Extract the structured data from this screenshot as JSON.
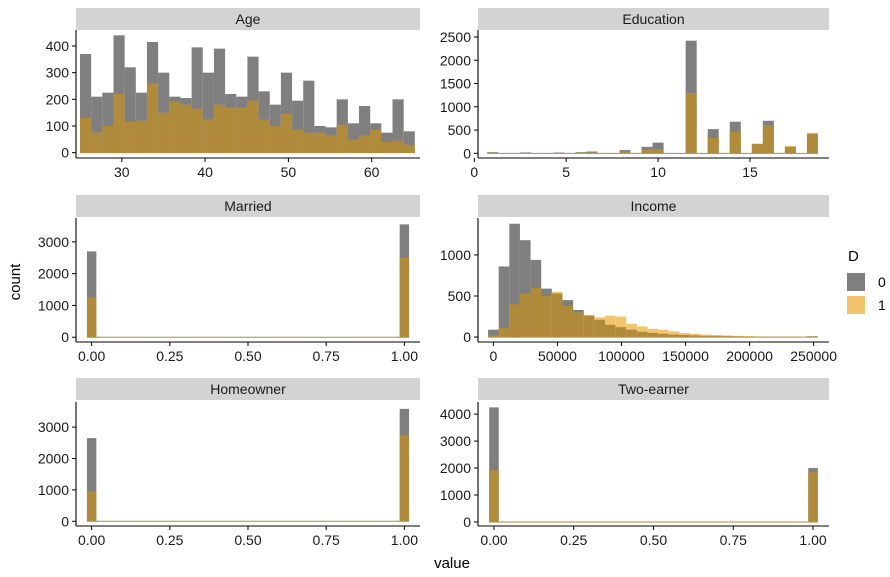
{
  "figure": {
    "xlabel": "value",
    "ylabel": "count",
    "legend": {
      "title": "D",
      "placement": "right",
      "entries": [
        "0",
        "1"
      ]
    },
    "colors": {
      "0": "#7f7f7f",
      "1": "#f2c46d",
      "overlap": "#b08b3c",
      "strip": "#d3d3d3",
      "axis": "#000000"
    }
  },
  "chart_data": [
    {
      "type": "bar",
      "title": "Age",
      "xlim": [
        24.5,
        65.8
      ],
      "ylim": [
        -20,
        460
      ],
      "x_ticks": [
        30,
        40,
        50,
        60
      ],
      "x_tick_labels": [
        "30",
        "40",
        "50",
        "60"
      ],
      "y_ticks": [
        0,
        100,
        200,
        300,
        400
      ],
      "y_tick_labels": [
        "0",
        "100",
        "200",
        "300",
        "400"
      ],
      "x": [
        25.65,
        26.99,
        28.33,
        29.67,
        31.01,
        32.35,
        33.69,
        35.03,
        36.37,
        37.71,
        39.05,
        40.39,
        41.73,
        43.07,
        44.41,
        45.75,
        47.09,
        48.43,
        49.77,
        51.11,
        52.45,
        53.79,
        55.13,
        56.47,
        57.81,
        59.15,
        60.49,
        61.83,
        63.17,
        64.51
      ],
      "bin_width": 1.34,
      "series": [
        {
          "name": "0",
          "values": [
            370,
            210,
            225,
            440,
            320,
            225,
            415,
            300,
            210,
            205,
            395,
            300,
            390,
            220,
            210,
            360,
            230,
            180,
            300,
            195,
            270,
            100,
            95,
            200,
            110,
            175,
            110,
            75,
            200,
            80
          ]
        },
        {
          "name": "1",
          "values": [
            130,
            75,
            100,
            220,
            115,
            120,
            260,
            150,
            190,
            180,
            165,
            125,
            180,
            170,
            170,
            195,
            125,
            100,
            145,
            85,
            75,
            75,
            65,
            105,
            50,
            65,
            85,
            40,
            45,
            30
          ]
        }
      ]
    },
    {
      "type": "bar",
      "title": "Education",
      "xlim": [
        0.2,
        19.3
      ],
      "ylim": [
        -100,
        2650
      ],
      "x_ticks": [
        0,
        5,
        10,
        15
      ],
      "x_tick_labels": [
        "0",
        "5",
        "10",
        "15"
      ],
      "y_ticks": [
        0,
        500,
        1000,
        1500,
        2000,
        2500
      ],
      "y_tick_labels": [
        "0",
        "500",
        "1000",
        "1500",
        "2000",
        "2500"
      ],
      "x": [
        1.0,
        1.6,
        2.2,
        2.8,
        3.4,
        4.0,
        4.6,
        5.2,
        5.8,
        6.4,
        7.0,
        7.6,
        8.2,
        8.8,
        9.4,
        10.0,
        10.6,
        11.2,
        11.8,
        12.4,
        13.0,
        13.6,
        14.2,
        14.8,
        15.4,
        16.0,
        16.6,
        17.2,
        17.8,
        18.4
      ],
      "bin_width": 0.6,
      "series": [
        {
          "name": "0",
          "values": [
            25,
            0,
            0,
            20,
            0,
            0,
            18,
            0,
            25,
            40,
            0,
            0,
            70,
            0,
            140,
            230,
            0,
            0,
            2420,
            0,
            520,
            0,
            680,
            0,
            200,
            700,
            0,
            140,
            0,
            420
          ]
        },
        {
          "name": "1",
          "values": [
            12,
            0,
            0,
            10,
            0,
            0,
            8,
            0,
            15,
            20,
            0,
            0,
            40,
            0,
            75,
            95,
            0,
            0,
            1300,
            0,
            330,
            0,
            460,
            0,
            210,
            600,
            0,
            160,
            0,
            440
          ]
        }
      ]
    },
    {
      "type": "bar",
      "title": "Married",
      "xlim": [
        -0.05,
        1.05
      ],
      "ylim": [
        -150,
        3750
      ],
      "x_ticks": [
        0,
        0.25,
        0.5,
        0.75,
        1.0
      ],
      "x_tick_labels": [
        "0.00",
        "0.25",
        "0.50",
        "0.75",
        "1.00"
      ],
      "y_ticks": [
        0,
        1000,
        2000,
        3000
      ],
      "y_tick_labels": [
        "0",
        "1000",
        "2000",
        "3000"
      ],
      "x": [
        0.0,
        1.0
      ],
      "bin_width": 0.03,
      "series": [
        {
          "name": "0",
          "values": [
            2700,
            3550
          ]
        },
        {
          "name": "1",
          "values": [
            1250,
            2500
          ]
        }
      ]
    },
    {
      "type": "bar",
      "title": "Income",
      "xlim": [
        -12000,
        262000
      ],
      "ylim": [
        -60,
        1450
      ],
      "x_ticks": [
        0,
        50000,
        100000,
        150000,
        200000,
        250000
      ],
      "x_tick_labels": [
        "0",
        "50000",
        "100000",
        "150000",
        "200000",
        "250000"
      ],
      "y_ticks": [
        0,
        500,
        1000
      ],
      "y_tick_labels": [
        "0",
        "500",
        "1000"
      ],
      "x": [
        0,
        8300,
        16600,
        24900,
        33200,
        41500,
        49800,
        58100,
        66400,
        74700,
        83000,
        91300,
        99600,
        107900,
        116200,
        124500,
        132800,
        141100,
        149400,
        157700,
        166000,
        174300,
        182600,
        190900,
        199200,
        207500,
        215800,
        224100,
        232400,
        240700,
        249000
      ],
      "bin_width": 8300,
      "series": [
        {
          "name": "0",
          "values": [
            90,
            860,
            1380,
            1180,
            940,
            590,
            530,
            450,
            330,
            260,
            210,
            150,
            120,
            90,
            65,
            50,
            40,
            30,
            25,
            20,
            15,
            12,
            10,
            8,
            6,
            5,
            4,
            3,
            3,
            2,
            10
          ]
        },
        {
          "name": "1",
          "values": [
            20,
            110,
            400,
            530,
            600,
            500,
            550,
            380,
            300,
            270,
            240,
            260,
            250,
            160,
            130,
            100,
            90,
            70,
            50,
            40,
            30,
            25,
            20,
            15,
            12,
            8,
            6,
            5,
            4,
            3,
            8
          ]
        }
      ]
    },
    {
      "type": "bar",
      "title": "Homeowner",
      "xlim": [
        -0.05,
        1.05
      ],
      "ylim": [
        -150,
        3800
      ],
      "x_ticks": [
        0,
        0.25,
        0.5,
        0.75,
        1.0
      ],
      "x_tick_labels": [
        "0.00",
        "0.25",
        "0.50",
        "0.75",
        "1.00"
      ],
      "y_ticks": [
        0,
        1000,
        2000,
        3000
      ],
      "y_tick_labels": [
        "0",
        "1000",
        "2000",
        "3000"
      ],
      "x": [
        0.0,
        1.0
      ],
      "bin_width": 0.03,
      "series": [
        {
          "name": "0",
          "values": [
            2650,
            3580
          ]
        },
        {
          "name": "1",
          "values": [
            950,
            2730
          ]
        }
      ]
    },
    {
      "type": "bar",
      "title": "Two-earner",
      "xlim": [
        -0.05,
        1.05
      ],
      "ylim": [
        -150,
        4450
      ],
      "x_ticks": [
        0,
        0.25,
        0.5,
        0.75,
        1.0
      ],
      "x_tick_labels": [
        "0.00",
        "0.25",
        "0.50",
        "0.75",
        "1.00"
      ],
      "y_ticks": [
        0,
        1000,
        2000,
        3000,
        4000
      ],
      "y_tick_labels": [
        "0",
        "1000",
        "2000",
        "3000",
        "4000"
      ],
      "x": [
        0.0,
        1.0
      ],
      "bin_width": 0.03,
      "series": [
        {
          "name": "0",
          "values": [
            4250,
            2000
          ]
        },
        {
          "name": "1",
          "values": [
            1920,
            1850
          ]
        }
      ]
    }
  ]
}
